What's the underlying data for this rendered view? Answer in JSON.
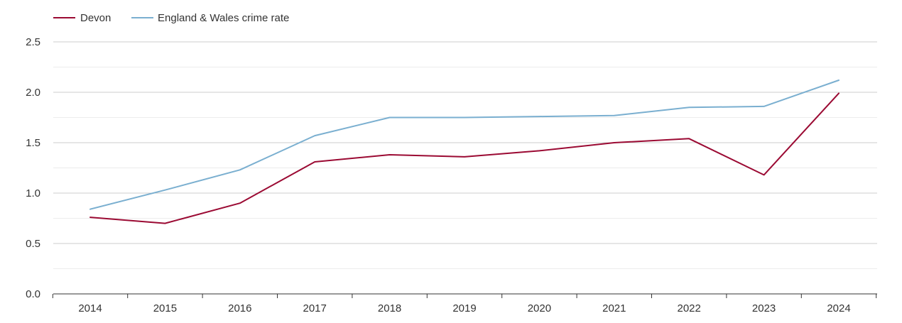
{
  "chart_data": {
    "type": "line",
    "title": "",
    "xlabel": "",
    "ylabel": "",
    "x": [
      "2014",
      "2015",
      "2016",
      "2017",
      "2018",
      "2019",
      "2020",
      "2021",
      "2022",
      "2023",
      "2024"
    ],
    "ylim": [
      0,
      2.5
    ],
    "y_ticks": [
      "0.0",
      "0.5",
      "1.0",
      "1.5",
      "2.0",
      "2.5"
    ],
    "grid": true,
    "legend_position": "top-left",
    "series": [
      {
        "name": "Devon",
        "color": "#9b0a33",
        "values": [
          0.76,
          0.7,
          0.9,
          1.31,
          1.38,
          1.36,
          1.42,
          1.5,
          1.54,
          1.18,
          1.99
        ]
      },
      {
        "name": "England & Wales crime rate",
        "color": "#7aafd0",
        "values": [
          0.84,
          1.03,
          1.23,
          1.57,
          1.75,
          1.75,
          1.76,
          1.77,
          1.85,
          1.86,
          2.12
        ]
      }
    ]
  }
}
